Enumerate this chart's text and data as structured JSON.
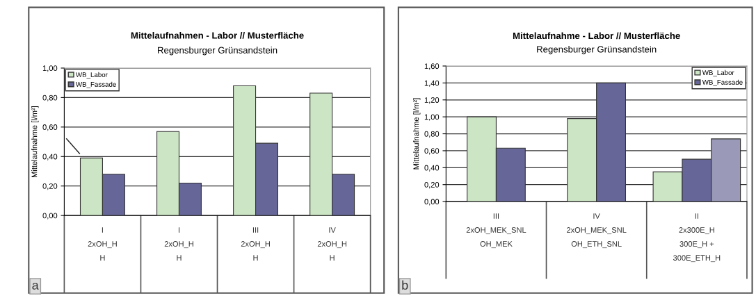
{
  "chart_data": [
    {
      "type": "bar",
      "title": "Mittelaufnahmen - Labor // Musterfläche",
      "subtitle": "Regensburger Grünsandstein",
      "ylabel": "Mittelaufnahme [l/m²]",
      "categories": [
        "I\n2xOH_H\nH",
        "I\n2xOH_H\nH",
        "III\n2xOH_H\nH",
        "IV\n2xOH_H\nH"
      ],
      "series": [
        {
          "name": "WB_Labor",
          "color": "#cce5c4",
          "values": [
            0.39,
            0.57,
            0.88,
            0.83
          ]
        },
        {
          "name": "WB_Fassade",
          "color": "#666699",
          "values": [
            0.28,
            0.22,
            0.49,
            0.28
          ]
        }
      ],
      "ylim": [
        0,
        1.0
      ],
      "yticks": [
        {
          "value": 0,
          "label": "0,00"
        },
        {
          "value": 0.2,
          "label": "0,20"
        },
        {
          "value": 0.4,
          "label": "0,40"
        },
        {
          "value": 0.6,
          "label": "0,60"
        },
        {
          "value": 0.8,
          "label": "0,80"
        },
        {
          "value": 1.0,
          "label": "1,00"
        }
      ],
      "grid": "y",
      "legend": "top left",
      "annotations": [
        "a"
      ]
    },
    {
      "type": "bar",
      "title": "Mittelaufnahme - Labor // Musterfläche",
      "subtitle": "Regensburger Grünsandstein",
      "ylabel": "Mittelaufnahme [l/m²]",
      "categories": [
        "III\n2xOH_MEK_SNL\nOH_MEK",
        "IV\n2xOH_MEK_SNL\nOH_ETH_SNL",
        "II\n2x300E_H\n300E_H +\n300E_ETH_H"
      ],
      "series": [
        {
          "name": "WB_Labor",
          "color": "#cce5c4",
          "values": [
            1.0,
            0.98,
            0.35
          ]
        },
        {
          "name": "WB_Fassade",
          "color": "#666699",
          "values": [
            0.63,
            1.4,
            0.5
          ]
        },
        {
          "color": "#9a9ab8",
          "values": [
            null,
            null,
            0.74
          ]
        }
      ],
      "ylim": [
        0,
        1.6
      ],
      "yticks": [
        {
          "value": 0,
          "label": "0,00"
        },
        {
          "value": 0.2,
          "label": "0,20"
        },
        {
          "value": 0.4,
          "label": "0,40"
        },
        {
          "value": 0.6,
          "label": "0,60"
        },
        {
          "value": 0.8,
          "label": "0,80"
        },
        {
          "value": 1.0,
          "label": "1,00"
        },
        {
          "value": 1.2,
          "label": "1,20"
        },
        {
          "value": 1.4,
          "label": "1,40"
        },
        {
          "value": 1.6,
          "label": "1,60"
        }
      ],
      "grid": "y",
      "legend": "top right",
      "annotations": [
        "b"
      ]
    }
  ]
}
